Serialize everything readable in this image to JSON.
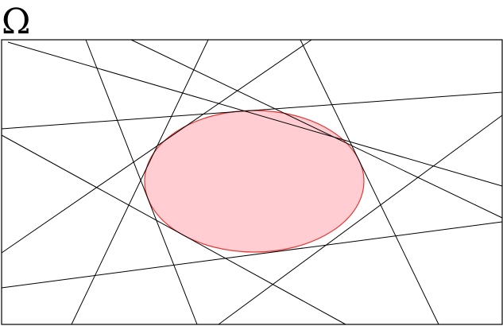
{
  "diagram": {
    "label": "Ω",
    "colors": {
      "boundary": "#000000",
      "lines": "#000000",
      "ellipse_fill": "#ffcdd2",
      "ellipse_stroke": "#e53935"
    }
  }
}
